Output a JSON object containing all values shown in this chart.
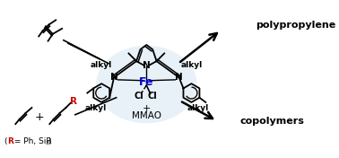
{
  "background_color": "#ffffff",
  "fe_color": "#0000cc",
  "r_color": "#cc0000",
  "light_blue_bg": "#cce0f0",
  "figsize": [
    3.78,
    1.76
  ],
  "dpi": 100,
  "labels": {
    "polypropylene": "polypropylene",
    "copolymers": "copolymers",
    "mmao_plus": "+",
    "mmao": "MMAO",
    "alkyl_tl": "alkyl",
    "alkyl_tr": "alkyl",
    "alkyl_bl": "alkyl",
    "alkyl_br": "alkyl",
    "fe": "Fe",
    "cl1": "Cl",
    "cl2": "Cl",
    "n_py": "N",
    "n_left": "N",
    "n_right": "N",
    "r_label": "R",
    "r_eq_open": "(",
    "r_eq_r": "R",
    "r_eq_text": " = Ph, SiR",
    "r_eq_sub": "3",
    "r_eq_close": ")"
  }
}
